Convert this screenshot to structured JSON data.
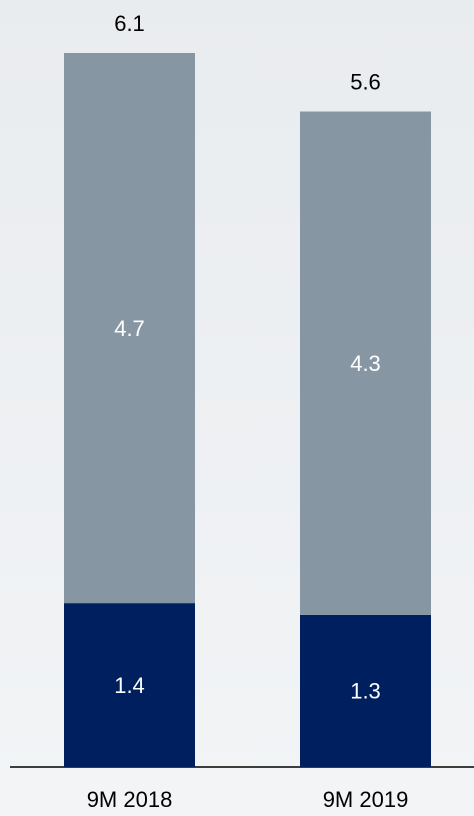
{
  "chart_data": {
    "type": "stacked_bar",
    "categories": [
      "9M 2018",
      "9M 2019"
    ],
    "series": [
      {
        "color": "#001f5f",
        "values": [
          1.4,
          1.3
        ]
      },
      {
        "color": "#8796a3",
        "values": [
          4.7,
          4.3
        ]
      }
    ],
    "totals": [
      6.1,
      5.6
    ]
  }
}
